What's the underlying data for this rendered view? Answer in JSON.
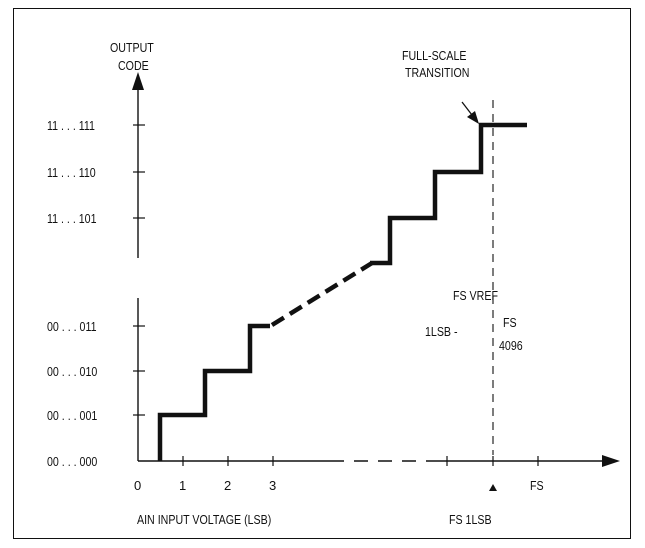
{
  "y_axis": {
    "title_line1": "OUTPUT",
    "title_line2": "CODE",
    "upper_codes": [
      "11 . . . 111",
      "11 . . . 110",
      "11 . . . 101"
    ],
    "lower_codes": [
      "00 . . . 011",
      "00 . . . 010",
      "00 . . . 001",
      "00 . . . 000"
    ]
  },
  "x_axis": {
    "origin": "0",
    "ticks": [
      "1",
      "2",
      "3"
    ],
    "fs_label": "FS",
    "title": "AIN INPUT VOLTAGE (LSB)",
    "fs_minus_label": "FS  1LSB"
  },
  "annotations": {
    "full_scale_line1": "FULL-SCALE",
    "full_scale_line2": "TRANSITION",
    "fs_vref": "FS   VREF",
    "lsb_lhs": "1LSB  -",
    "lsb_num": "FS",
    "lsb_den": "4096"
  },
  "colors": {
    "ink": "#111111",
    "background": "#ffffff"
  }
}
